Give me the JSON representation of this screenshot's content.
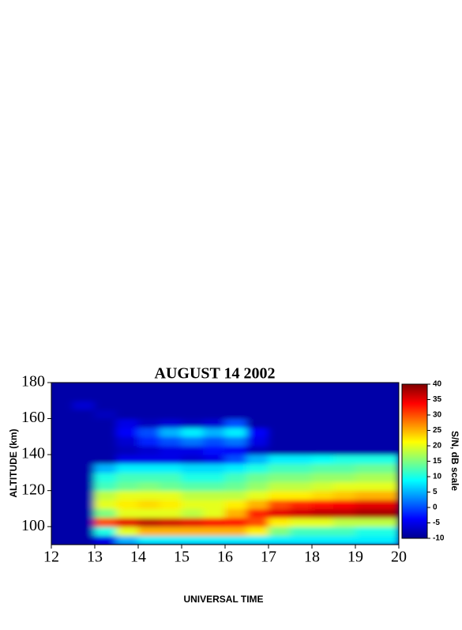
{
  "chart_data": {
    "type": "heatmap",
    "title": "AUGUST 14  2002",
    "x_label": "UNIVERSAL TIME",
    "y_label": "ALTITUDE (km)",
    "colorbar_label": "S/N, dB scale",
    "colormap": "jet",
    "x": [
      12,
      12.5,
      13,
      13.5,
      14,
      14.5,
      15,
      15.5,
      16,
      16.5,
      17,
      17.5,
      18,
      18.5,
      19,
      19.5
    ],
    "y": [
      90,
      95,
      100,
      105,
      110,
      115,
      120,
      125,
      130,
      135,
      140,
      145,
      150,
      155,
      160,
      165,
      170,
      175
    ],
    "z": [
      [
        -8,
        -8,
        -5,
        5,
        8,
        8,
        8,
        8,
        8,
        8,
        8,
        8,
        8,
        8,
        8,
        8
      ],
      [
        -8,
        -8,
        10,
        20,
        25,
        25,
        25,
        25,
        25,
        22,
        15,
        12,
        12,
        12,
        10,
        10
      ],
      [
        -8,
        -8,
        30,
        35,
        37,
        36,
        35,
        34,
        33,
        30,
        22,
        20,
        20,
        18,
        18,
        18
      ],
      [
        -8,
        -8,
        15,
        20,
        20,
        20,
        18,
        20,
        25,
        32,
        35,
        36,
        37,
        37,
        38,
        38
      ],
      [
        -8,
        -8,
        20,
        22,
        23,
        22,
        20,
        20,
        22,
        25,
        30,
        32,
        33,
        34,
        35,
        35
      ],
      [
        -8,
        -8,
        18,
        20,
        20,
        20,
        18,
        18,
        18,
        20,
        22,
        22,
        23,
        24,
        25,
        25
      ],
      [
        -8,
        -8,
        12,
        14,
        15,
        14,
        13,
        13,
        14,
        16,
        18,
        18,
        19,
        20,
        20,
        20
      ],
      [
        -8,
        -8,
        10,
        12,
        12,
        12,
        10,
        10,
        12,
        14,
        15,
        15,
        16,
        16,
        17,
        17
      ],
      [
        -8,
        -8,
        5,
        8,
        8,
        8,
        7,
        7,
        8,
        10,
        12,
        12,
        13,
        13,
        14,
        14
      ],
      [
        -8,
        -8,
        -8,
        -5,
        -5,
        -5,
        -6,
        -5,
        0,
        5,
        8,
        8,
        9,
        10,
        10,
        10
      ],
      [
        -8,
        -8,
        -8,
        -7,
        -6,
        -5,
        -5,
        -3,
        -4,
        -7,
        -8,
        -8,
        -8,
        -8,
        -8,
        -8
      ],
      [
        -8,
        -8,
        -8,
        -6,
        -2,
        0,
        2,
        0,
        2,
        -5,
        -8,
        -8,
        -8,
        -8,
        -8,
        -8
      ],
      [
        -8,
        -8,
        -8,
        -4,
        0,
        5,
        8,
        5,
        8,
        -4,
        -8,
        -8,
        -8,
        -8,
        -8,
        -8
      ],
      [
        -8,
        -8,
        -8,
        -5,
        -7,
        -6,
        -7,
        -6,
        0,
        -8,
        -8,
        -8,
        -8,
        -8,
        -8,
        -8
      ],
      [
        -8,
        -8,
        -7,
        -8,
        -8,
        -8,
        -8,
        -8,
        -8,
        -8,
        -8,
        -8,
        -8,
        -8,
        -8,
        -8
      ],
      [
        -8,
        -6,
        -8,
        -8,
        -8,
        -8,
        -8,
        -8,
        -8,
        -8,
        -8,
        -8,
        -8,
        -8,
        -8,
        -8
      ],
      [
        -8,
        -8,
        -8,
        -8,
        -8,
        -8,
        -8,
        -8,
        -8,
        -8,
        -8,
        -8,
        -8,
        -8,
        -8,
        -8
      ],
      [
        -8,
        -8,
        -8,
        -8,
        -8,
        -8,
        -8,
        -8,
        -8,
        -8,
        -8,
        -8,
        -8,
        -8,
        -8,
        -8
      ]
    ],
    "xlim": [
      12,
      20
    ],
    "xticks": [
      12,
      13,
      14,
      15,
      16,
      17,
      18,
      19,
      20
    ],
    "ylim": [
      90,
      180
    ],
    "yticks": [
      100,
      120,
      140,
      160,
      180
    ],
    "zlim": [
      -10,
      40
    ],
    "zticks": [
      -10,
      -5,
      0,
      5,
      10,
      15,
      20,
      25,
      30,
      35,
      40
    ]
  }
}
